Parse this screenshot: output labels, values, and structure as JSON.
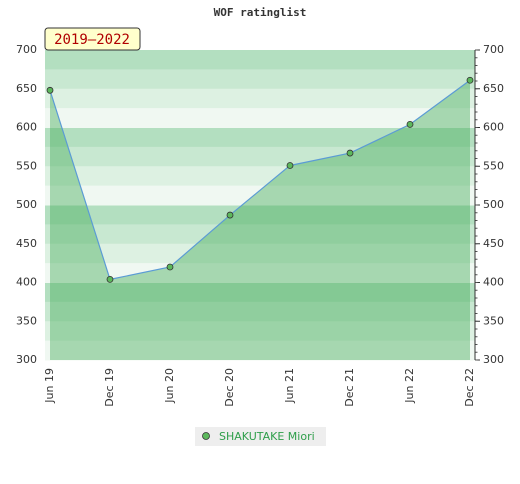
{
  "chart_data": {
    "type": "line",
    "title": "WOF ratinglist",
    "annotation": "2019–2022",
    "categories": [
      "Jun 19",
      "Dec 19",
      "Jun 20",
      "Dec 20",
      "Jun 21",
      "Dec 21",
      "Jun 22",
      "Dec 22"
    ],
    "series": [
      {
        "name": "SHAKUTAKE Miori",
        "color": "#5b9bd5",
        "marker_color": "#5cb85c",
        "values": [
          648,
          404,
          420,
          487,
          551,
          567,
          604,
          661
        ]
      }
    ],
    "ylim": [
      300,
      700
    ],
    "yticks": [
      300,
      350,
      400,
      450,
      500,
      550,
      600,
      650,
      700
    ],
    "grid": true
  }
}
